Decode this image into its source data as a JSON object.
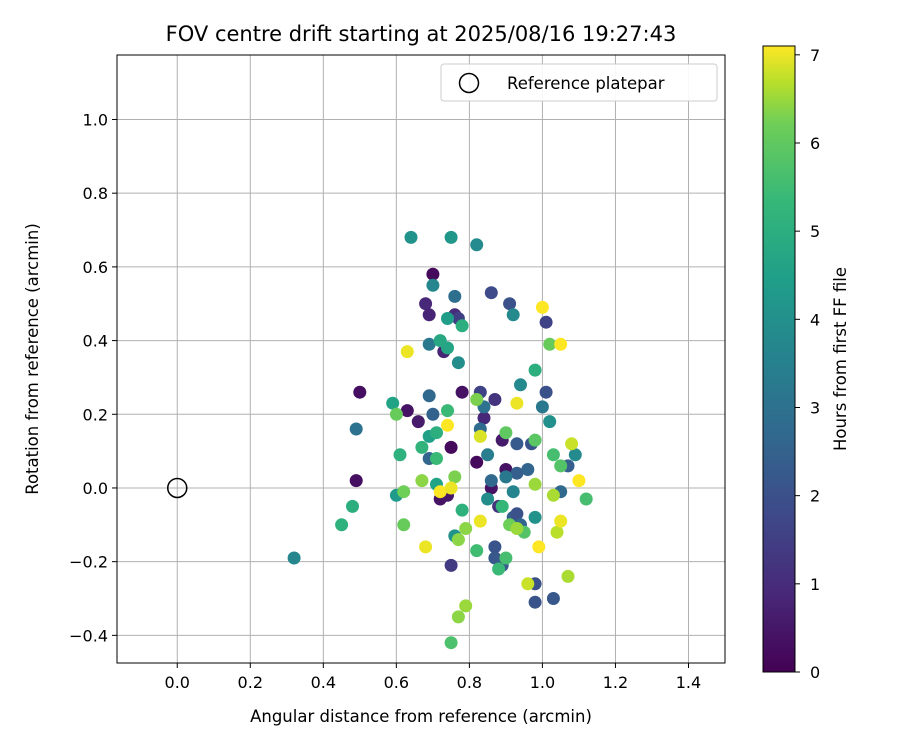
{
  "chart_data": {
    "type": "scatter",
    "title": "FOV centre drift starting at 2025/08/16 19:27:43",
    "xlabel": "Angular distance from reference (arcmin)",
    "ylabel": "Rotation from reference (arcmin)",
    "xlim": [
      -0.165,
      1.5
    ],
    "ylim": [
      -0.475,
      1.175
    ],
    "x_ticks": [
      0.0,
      0.2,
      0.4,
      0.6,
      0.8,
      1.0,
      1.2,
      1.4
    ],
    "x_tick_labels": [
      "0.0",
      "0.2",
      "0.4",
      "0.6",
      "0.8",
      "1.0",
      "1.2",
      "1.4"
    ],
    "y_ticks": [
      -0.4,
      -0.2,
      0.0,
      0.2,
      0.4,
      0.6,
      0.8,
      1.0
    ],
    "y_tick_labels": [
      "−0.4",
      "−0.2",
      "0.0",
      "0.2",
      "0.4",
      "0.6",
      "0.8",
      "1.0"
    ],
    "grid": true,
    "legend": {
      "placement": "top-right",
      "entries": [
        {
          "label": "Reference platepar",
          "marker": "open-circle"
        }
      ]
    },
    "reference_point": {
      "x": 0.0,
      "y": 0.0
    },
    "colorbar": {
      "label": "Hours from first FF file",
      "colormap": "viridis",
      "range": [
        0,
        7.1
      ],
      "ticks": [
        0,
        1,
        2,
        3,
        4,
        5,
        6,
        7
      ],
      "tick_labels": [
        "0",
        "1",
        "2",
        "3",
        "4",
        "5",
        "6",
        "7"
      ]
    },
    "points": [
      {
        "x": 0.49,
        "y": 0.02,
        "h": 0.3
      },
      {
        "x": 0.5,
        "y": 0.26,
        "h": 0.3
      },
      {
        "x": 0.63,
        "y": 0.21,
        "h": 0.4
      },
      {
        "x": 0.66,
        "y": 0.18,
        "h": 0.6
      },
      {
        "x": 0.68,
        "y": 0.5,
        "h": 0.9
      },
      {
        "x": 0.69,
        "y": 0.47,
        "h": 0.8
      },
      {
        "x": 0.7,
        "y": 0.58,
        "h": 0.2
      },
      {
        "x": 0.72,
        "y": -0.03,
        "h": 0.4
      },
      {
        "x": 0.73,
        "y": 0.37,
        "h": 0.8
      },
      {
        "x": 0.74,
        "y": -0.02,
        "h": 0.5
      },
      {
        "x": 0.75,
        "y": 0.11,
        "h": 0.2
      },
      {
        "x": 0.76,
        "y": 0.47,
        "h": 1.0
      },
      {
        "x": 0.78,
        "y": 0.26,
        "h": 0.4
      },
      {
        "x": 0.82,
        "y": 0.07,
        "h": 0.2
      },
      {
        "x": 0.86,
        "y": 0.0,
        "h": 0.4
      },
      {
        "x": 0.88,
        "y": -0.05,
        "h": 1.2
      },
      {
        "x": 0.89,
        "y": 0.13,
        "h": 0.6
      },
      {
        "x": 0.9,
        "y": 0.05,
        "h": 0.4
      },
      {
        "x": 0.87,
        "y": 0.24,
        "h": 1.2
      },
      {
        "x": 0.84,
        "y": 0.19,
        "h": 0.9
      },
      {
        "x": 0.75,
        "y": -0.21,
        "h": 1.4
      },
      {
        "x": 0.83,
        "y": 0.26,
        "h": 1.6
      },
      {
        "x": 0.77,
        "y": 0.46,
        "h": 1.5
      },
      {
        "x": 0.86,
        "y": 0.53,
        "h": 1.8
      },
      {
        "x": 0.91,
        "y": 0.5,
        "h": 2.0
      },
      {
        "x": 1.01,
        "y": 0.45,
        "h": 1.6
      },
      {
        "x": 1.01,
        "y": 0.26,
        "h": 2.0
      },
      {
        "x": 0.97,
        "y": 0.12,
        "h": 2.1
      },
      {
        "x": 0.93,
        "y": 0.12,
        "h": 2.3
      },
      {
        "x": 0.96,
        "y": 0.05,
        "h": 2.6
      },
      {
        "x": 0.93,
        "y": 0.04,
        "h": 2.4
      },
      {
        "x": 0.86,
        "y": 0.02,
        "h": 2.7
      },
      {
        "x": 0.87,
        "y": -0.16,
        "h": 2.1
      },
      {
        "x": 0.87,
        "y": -0.19,
        "h": 2.2
      },
      {
        "x": 0.89,
        "y": -0.21,
        "h": 2.3
      },
      {
        "x": 0.92,
        "y": -0.08,
        "h": 2.4
      },
      {
        "x": 0.93,
        "y": -0.07,
        "h": 2.0
      },
      {
        "x": 0.94,
        "y": -0.1,
        "h": 2.6
      },
      {
        "x": 0.98,
        "y": -0.26,
        "h": 2.0
      },
      {
        "x": 0.98,
        "y": -0.31,
        "h": 2.1
      },
      {
        "x": 1.03,
        "y": -0.3,
        "h": 2.2
      },
      {
        "x": 1.05,
        "y": -0.01,
        "h": 2.7
      },
      {
        "x": 1.07,
        "y": 0.06,
        "h": 2.4
      },
      {
        "x": 0.69,
        "y": 0.08,
        "h": 2.6
      },
      {
        "x": 0.7,
        "y": 0.2,
        "h": 2.5
      },
      {
        "x": 0.69,
        "y": 0.25,
        "h": 2.7
      },
      {
        "x": 0.69,
        "y": 0.39,
        "h": 3.2
      },
      {
        "x": 0.76,
        "y": 0.52,
        "h": 2.9
      },
      {
        "x": 0.83,
        "y": 0.16,
        "h": 2.8
      },
      {
        "x": 0.84,
        "y": 0.22,
        "h": 3.0
      },
      {
        "x": 0.85,
        "y": 0.09,
        "h": 3.4
      },
      {
        "x": 0.9,
        "y": 0.03,
        "h": 3.2
      },
      {
        "x": 0.92,
        "y": -0.01,
        "h": 3.6
      },
      {
        "x": 1.0,
        "y": 0.22,
        "h": 3.2
      },
      {
        "x": 0.49,
        "y": 0.16,
        "h": 3.0
      },
      {
        "x": 0.32,
        "y": -0.19,
        "h": 3.7
      },
      {
        "x": 0.64,
        "y": 0.68,
        "h": 4.1
      },
      {
        "x": 0.75,
        "y": 0.68,
        "h": 4.2
      },
      {
        "x": 0.82,
        "y": 0.66,
        "h": 3.8
      },
      {
        "x": 0.7,
        "y": 0.55,
        "h": 3.7
      },
      {
        "x": 0.92,
        "y": 0.47,
        "h": 3.8
      },
      {
        "x": 0.94,
        "y": 0.28,
        "h": 3.8
      },
      {
        "x": 0.77,
        "y": 0.34,
        "h": 3.9
      },
      {
        "x": 1.02,
        "y": 0.18,
        "h": 4.0
      },
      {
        "x": 1.09,
        "y": 0.09,
        "h": 3.8
      },
      {
        "x": 0.85,
        "y": -0.03,
        "h": 3.9
      },
      {
        "x": 0.98,
        "y": -0.08,
        "h": 4.1
      },
      {
        "x": 0.76,
        "y": -0.13,
        "h": 4.1
      },
      {
        "x": 0.69,
        "y": 0.14,
        "h": 4.5
      },
      {
        "x": 0.74,
        "y": 0.46,
        "h": 4.4
      },
      {
        "x": 0.59,
        "y": 0.23,
        "h": 4.6
      },
      {
        "x": 0.6,
        "y": -0.02,
        "h": 4.3
      },
      {
        "x": 0.71,
        "y": 0.01,
        "h": 4.6
      },
      {
        "x": 0.72,
        "y": 0.4,
        "h": 4.8
      },
      {
        "x": 0.74,
        "y": 0.38,
        "h": 4.7
      },
      {
        "x": 0.78,
        "y": 0.44,
        "h": 5.0
      },
      {
        "x": 0.98,
        "y": 0.32,
        "h": 5.0
      },
      {
        "x": 0.71,
        "y": 0.15,
        "h": 5.0
      },
      {
        "x": 0.67,
        "y": 0.11,
        "h": 5.2
      },
      {
        "x": 0.61,
        "y": 0.09,
        "h": 5.1
      },
      {
        "x": 0.48,
        "y": -0.05,
        "h": 5.0
      },
      {
        "x": 0.45,
        "y": -0.1,
        "h": 5.1
      },
      {
        "x": 0.71,
        "y": 0.08,
        "h": 5.4
      },
      {
        "x": 0.74,
        "y": 0.21,
        "h": 5.4
      },
      {
        "x": 0.78,
        "y": -0.06,
        "h": 5.1
      },
      {
        "x": 0.82,
        "y": -0.17,
        "h": 5.5
      },
      {
        "x": 0.88,
        "y": -0.22,
        "h": 5.4
      },
      {
        "x": 0.9,
        "y": -0.19,
        "h": 5.6
      },
      {
        "x": 0.89,
        "y": -0.05,
        "h": 5.3
      },
      {
        "x": 0.95,
        "y": -0.12,
        "h": 5.8
      },
      {
        "x": 1.03,
        "y": 0.09,
        "h": 5.6
      },
      {
        "x": 1.05,
        "y": 0.06,
        "h": 5.8
      },
      {
        "x": 1.12,
        "y": -0.03,
        "h": 5.6
      },
      {
        "x": 0.98,
        "y": 0.13,
        "h": 5.9
      },
      {
        "x": 0.9,
        "y": 0.15,
        "h": 6.0
      },
      {
        "x": 0.82,
        "y": 0.24,
        "h": 6.3
      },
      {
        "x": 1.02,
        "y": 0.39,
        "h": 6.1
      },
      {
        "x": 0.6,
        "y": 0.2,
        "h": 6.1
      },
      {
        "x": 0.62,
        "y": -0.01,
        "h": 6.2
      },
      {
        "x": 0.62,
        "y": -0.1,
        "h": 6.1
      },
      {
        "x": 0.67,
        "y": 0.02,
        "h": 6.4
      },
      {
        "x": 0.76,
        "y": 0.03,
        "h": 6.3
      },
      {
        "x": 0.77,
        "y": -0.14,
        "h": 6.4
      },
      {
        "x": 0.79,
        "y": -0.11,
        "h": 6.4
      },
      {
        "x": 0.75,
        "y": -0.42,
        "h": 5.7
      },
      {
        "x": 0.77,
        "y": -0.35,
        "h": 6.4
      },
      {
        "x": 0.79,
        "y": -0.32,
        "h": 6.5
      },
      {
        "x": 0.91,
        "y": -0.1,
        "h": 6.2
      },
      {
        "x": 0.93,
        "y": -0.11,
        "h": 6.5
      },
      {
        "x": 0.96,
        "y": -0.26,
        "h": 6.8
      },
      {
        "x": 0.98,
        "y": 0.01,
        "h": 6.5
      },
      {
        "x": 1.03,
        "y": -0.02,
        "h": 6.6
      },
      {
        "x": 1.04,
        "y": -0.12,
        "h": 6.7
      },
      {
        "x": 1.07,
        "y": -0.24,
        "h": 6.6
      },
      {
        "x": 1.08,
        "y": 0.12,
        "h": 6.8
      },
      {
        "x": 0.63,
        "y": 0.37,
        "h": 7.0
      },
      {
        "x": 0.68,
        "y": -0.16,
        "h": 7.0
      },
      {
        "x": 0.72,
        "y": -0.01,
        "h": 7.1
      },
      {
        "x": 0.75,
        "y": 0.0,
        "h": 7.0
      },
      {
        "x": 0.74,
        "y": 0.17,
        "h": 7.1
      },
      {
        "x": 0.83,
        "y": -0.09,
        "h": 7.0
      },
      {
        "x": 0.83,
        "y": 0.14,
        "h": 6.9
      },
      {
        "x": 0.93,
        "y": 0.23,
        "h": 7.0
      },
      {
        "x": 0.99,
        "y": -0.16,
        "h": 7.1
      },
      {
        "x": 1.0,
        "y": 0.49,
        "h": 7.1
      },
      {
        "x": 1.05,
        "y": 0.39,
        "h": 7.1
      },
      {
        "x": 1.05,
        "y": -0.09,
        "h": 7.0
      },
      {
        "x": 1.1,
        "y": 0.02,
        "h": 7.1
      }
    ]
  }
}
